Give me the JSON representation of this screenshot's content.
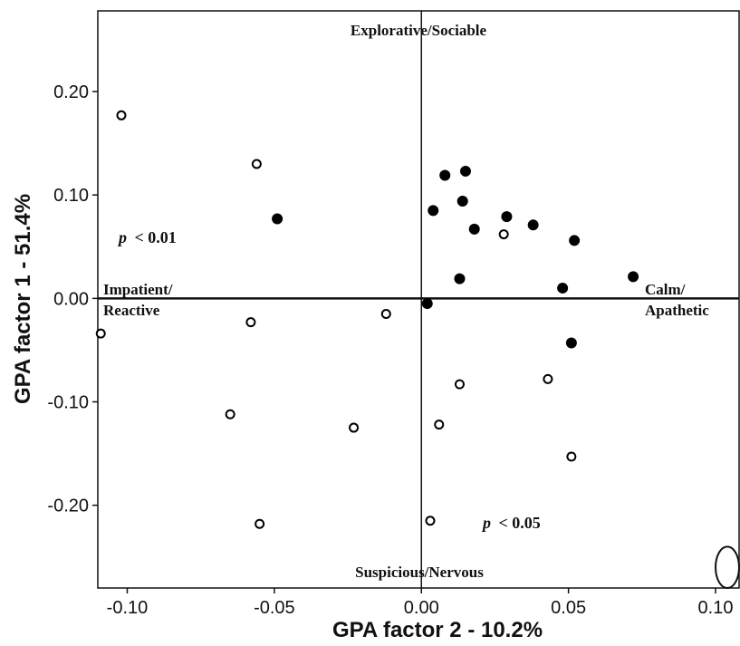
{
  "chart_data": {
    "type": "scatter",
    "xlabel": "GPA factor 2 - 10.2%",
    "ylabel": "GPA factor 1 - 51.4%",
    "xlim": [
      -0.11,
      0.108
    ],
    "ylim": [
      -0.28,
      0.278
    ],
    "x_ticks": [
      "-0.10",
      "-0.05",
      "0.00",
      "0.05",
      "0.10"
    ],
    "x_tick_values": [
      -0.1,
      -0.05,
      0.0,
      0.05,
      0.1
    ],
    "y_ticks": [
      "0.20",
      "0.10",
      "0.00",
      "-0.10",
      "-0.20"
    ],
    "y_tick_values": [
      0.2,
      0.1,
      0.0,
      -0.1,
      -0.2
    ],
    "grid": false,
    "reference_lines": {
      "x": 0,
      "y": 0
    },
    "quadrant_labels": {
      "top": "Explorative/Sociable",
      "bottom": "Suspicious/Nervous",
      "left_line1": "Impatient/",
      "left_line2": "Reactive",
      "right_line1": "Calm/",
      "right_line2": "Apathetic"
    },
    "annotations": {
      "p_left": "< 0.01",
      "p_right": "< 0.05",
      "p_symbol": "p"
    },
    "series": [
      {
        "marker": "open-circle",
        "points": [
          {
            "x": -0.102,
            "y": 0.177
          },
          {
            "x": -0.056,
            "y": 0.13
          },
          {
            "x": 0.028,
            "y": 0.062
          },
          {
            "x": -0.109,
            "y": -0.034
          },
          {
            "x": -0.058,
            "y": -0.023
          },
          {
            "x": -0.012,
            "y": -0.015
          },
          {
            "x": 0.043,
            "y": -0.078
          },
          {
            "x": 0.013,
            "y": -0.083
          },
          {
            "x": -0.065,
            "y": -0.112
          },
          {
            "x": 0.006,
            "y": -0.122
          },
          {
            "x": -0.023,
            "y": -0.125
          },
          {
            "x": 0.051,
            "y": -0.153
          },
          {
            "x": -0.055,
            "y": -0.218
          },
          {
            "x": 0.003,
            "y": -0.215
          }
        ]
      },
      {
        "marker": "filled-circle",
        "points": [
          {
            "x": -0.049,
            "y": 0.077
          },
          {
            "x": 0.008,
            "y": 0.119
          },
          {
            "x": 0.015,
            "y": 0.123
          },
          {
            "x": 0.014,
            "y": 0.094
          },
          {
            "x": 0.004,
            "y": 0.085
          },
          {
            "x": 0.029,
            "y": 0.079
          },
          {
            "x": 0.038,
            "y": 0.071
          },
          {
            "x": 0.018,
            "y": 0.067
          },
          {
            "x": 0.052,
            "y": 0.056
          },
          {
            "x": 0.072,
            "y": 0.021
          },
          {
            "x": 0.013,
            "y": 0.019
          },
          {
            "x": 0.048,
            "y": 0.01
          },
          {
            "x": 0.002,
            "y": -0.005
          },
          {
            "x": 0.051,
            "y": -0.043
          }
        ]
      }
    ],
    "ellipse": {
      "cx": 0.104,
      "cy": -0.26,
      "rx": 0.004,
      "ry": 0.02
    }
  }
}
